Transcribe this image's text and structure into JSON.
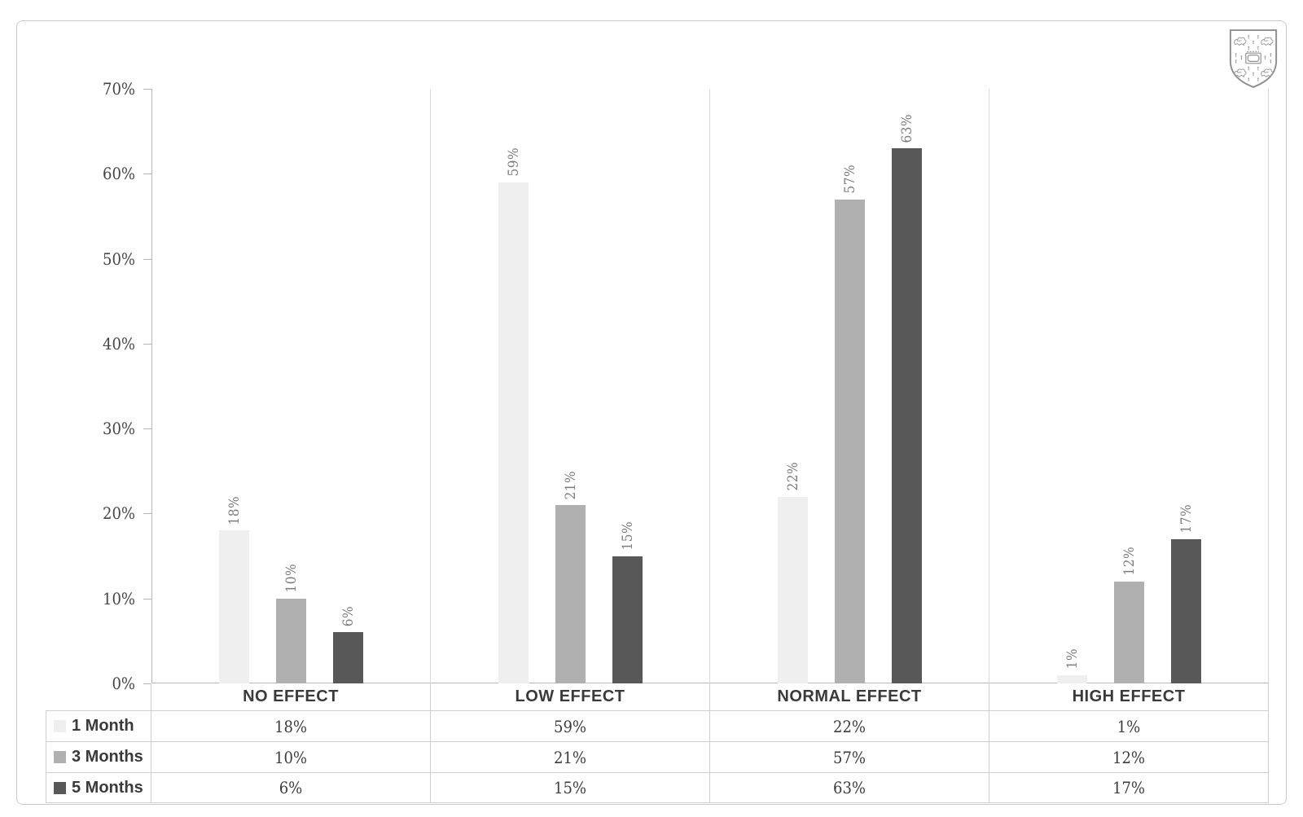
{
  "chart_data": {
    "type": "bar",
    "title": "",
    "categories": [
      "NO EFFECT",
      "LOW EFFECT",
      "NORMAL EFFECT",
      "HIGH EFFECT"
    ],
    "series": [
      {
        "name": "1 Month",
        "color": "#f0eff0",
        "values": [
          18,
          59,
          22,
          1
        ],
        "labels": [
          "18%",
          "59%",
          "22%",
          "1%"
        ]
      },
      {
        "name": "3 Months",
        "color": "#b1b0b0",
        "values": [
          10,
          21,
          57,
          12
        ],
        "labels": [
          "10%",
          "21%",
          "57%",
          "12%"
        ]
      },
      {
        "name": "5 Months",
        "color": "#585859",
        "values": [
          6,
          15,
          63,
          17
        ],
        "labels": [
          "6%",
          "15%",
          "63%",
          "17%"
        ]
      }
    ],
    "y_axis": {
      "min": 0,
      "max": 70,
      "ticks": [
        "0%",
        "10%",
        "20%",
        "30%",
        "40%",
        "50%",
        "60%",
        "70%"
      ]
    },
    "grid": "vertical category separators only, no horizontal gridlines",
    "legend_position": "table row headers bottom-left",
    "data_labels": "rotated 90deg above bars",
    "data_table_shown": true
  },
  "icons": {
    "crest": "university-shield-crest"
  },
  "colors": {
    "axis_line": "#b8b8b8",
    "separator_line": "#d9d9d9",
    "table_line": "#cfcfcf",
    "frame_border": "#c9c9c9",
    "label_text": "#7c7c7c",
    "axis_text": "#454545",
    "table_text": "#3d3d3d"
  }
}
